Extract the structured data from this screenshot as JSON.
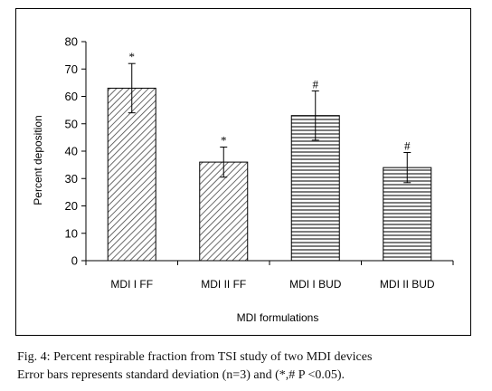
{
  "chart_data": {
    "type": "bar",
    "categories": [
      "MDI I FF",
      "MDI II FF",
      "MDI I BUD",
      "MDI II BUD"
    ],
    "values": [
      63,
      36,
      53,
      34
    ],
    "errors": [
      9,
      5.5,
      9,
      5.5
    ],
    "significance": [
      "*",
      "*",
      "#",
      "#"
    ],
    "patterns": [
      "diagonal",
      "diagonal",
      "horizontal",
      "horizontal"
    ],
    "xlabel": "MDI formulations",
    "ylabel": "Percent deposition",
    "ylim": [
      0,
      80
    ],
    "yticks": [
      0,
      10,
      20,
      30,
      40,
      50,
      60,
      70,
      80
    ],
    "grid": false,
    "legend": "none"
  },
  "caption": {
    "line1": "Fig. 4: Percent respirable fraction from TSI study of two MDI devices",
    "line2": "Error bars represents standard deviation (n=3) and (*,# P <0.05)."
  },
  "colors": {
    "axis": "#000000",
    "bar_fill": "#ffffff",
    "hatch": "#444444"
  }
}
